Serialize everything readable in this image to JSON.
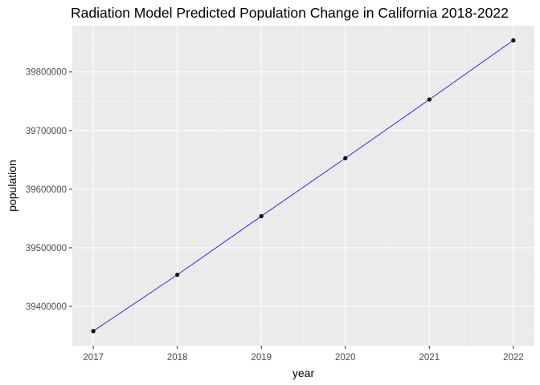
{
  "chart_data": {
    "type": "line",
    "title": "Radiation Model Predicted Population Change in California 2018-2022",
    "xlabel": "year",
    "ylabel": "population",
    "x": [
      2017,
      2018,
      2019,
      2020,
      2021,
      2022
    ],
    "series": [
      {
        "values": [
          39358000,
          39454000,
          39554000,
          39653000,
          39753000,
          39854000
        ]
      }
    ],
    "xticks": [
      "2017",
      "2018",
      "2019",
      "2020",
      "2021",
      "2022"
    ],
    "yticks": [
      {
        "value": 39400000,
        "label": "39400000"
      },
      {
        "value": 39500000,
        "label": "39500000"
      },
      {
        "value": 39600000,
        "label": "39600000"
      },
      {
        "value": 39700000,
        "label": "39700000"
      },
      {
        "value": 39800000,
        "label": "39800000"
      }
    ],
    "xlim": [
      2016.75,
      2022.25
    ],
    "ylim": [
      39333000,
      39879000
    ],
    "grid": true,
    "colors": {
      "panel": "#ebebeb",
      "grid_major": "#ffffff",
      "grid_minor": "#f5f5f5",
      "line": "#0000ff",
      "point": "#000000"
    }
  }
}
